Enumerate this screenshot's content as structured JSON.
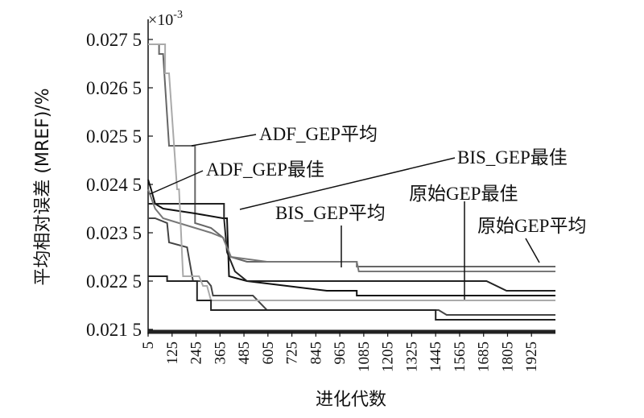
{
  "chart_data": {
    "type": "line",
    "xlabel": "进化代数",
    "ylabel": "平均相对误差 (MREF)/%",
    "y_exponent": "×10",
    "y_exponent_power": "-3",
    "xlim": [
      5,
      2045
    ],
    "ylim": [
      0.02145,
      0.02765
    ],
    "x_ticks": [
      "5",
      "125",
      "245",
      "365",
      "485",
      "605",
      "725",
      "845",
      "965",
      "1085",
      "1205",
      "1325",
      "1445",
      "1565",
      "1685",
      "1805",
      "1925"
    ],
    "x_tick_values": [
      5,
      125,
      245,
      365,
      485,
      605,
      725,
      845,
      965,
      1085,
      1205,
      1325,
      1445,
      1565,
      1685,
      1805,
      1925
    ],
    "y_ticks": [
      "0.021 5",
      "0.022 5",
      "0.023 5",
      "0.024 5",
      "0.025 5",
      "0.026 5",
      "0.027 5"
    ],
    "y_tick_values": [
      0.0215,
      0.0225,
      0.0235,
      0.0245,
      0.0255,
      0.0265,
      0.0275
    ],
    "series": [
      {
        "name": "ADF_GEP平均",
        "color": "#666666",
        "points": [
          [
            5,
            0.0274
          ],
          [
            60,
            0.0274
          ],
          [
            60,
            0.0272
          ],
          [
            80,
            0.0272
          ],
          [
            110,
            0.0253
          ],
          [
            240,
            0.0253
          ],
          [
            240,
            0.0237
          ],
          [
            320,
            0.0236
          ],
          [
            380,
            0.0234
          ],
          [
            420,
            0.023
          ],
          [
            500,
            0.0229
          ],
          [
            800,
            0.0229
          ],
          [
            1050,
            0.0229
          ],
          [
            1050,
            0.0228
          ],
          [
            1800,
            0.0228
          ],
          [
            1800,
            0.0228
          ],
          [
            2045,
            0.0228
          ]
        ]
      },
      {
        "name": "ADF_GEP最佳",
        "color": "#111111",
        "points": [
          [
            5,
            0.0246
          ],
          [
            20,
            0.0244
          ],
          [
            40,
            0.0241
          ],
          [
            80,
            0.024
          ],
          [
            240,
            0.0239
          ],
          [
            380,
            0.0238
          ],
          [
            400,
            0.0238
          ],
          [
            410,
            0.0226
          ],
          [
            500,
            0.0225
          ],
          [
            700,
            0.0224
          ],
          [
            900,
            0.0223
          ],
          [
            1050,
            0.0223
          ],
          [
            1050,
            0.0222
          ],
          [
            1800,
            0.0222
          ],
          [
            2045,
            0.0222
          ]
        ]
      },
      {
        "name": "BIS_GEP最佳",
        "color": "#222222",
        "points": [
          [
            5,
            0.0241
          ],
          [
            385,
            0.0241
          ],
          [
            385,
            0.0238
          ],
          [
            400,
            0.0231
          ],
          [
            440,
            0.0227
          ],
          [
            500,
            0.0225
          ],
          [
            1700,
            0.0225
          ],
          [
            1800,
            0.0223
          ],
          [
            2045,
            0.0223
          ]
        ]
      },
      {
        "name": "BIS_GEP平均",
        "color": "#777777",
        "points": [
          [
            5,
            0.0244
          ],
          [
            40,
            0.024
          ],
          [
            80,
            0.0238
          ],
          [
            160,
            0.0237
          ],
          [
            240,
            0.0236
          ],
          [
            320,
            0.0235
          ],
          [
            380,
            0.0234
          ],
          [
            420,
            0.023
          ],
          [
            600,
            0.0229
          ],
          [
            1050,
            0.0229
          ],
          [
            1060,
            0.0227
          ],
          [
            2045,
            0.0227
          ]
        ]
      },
      {
        "name": "原始GEP最佳",
        "color": "#444444",
        "points": [
          [
            5,
            0.0238
          ],
          [
            40,
            0.0238
          ],
          [
            100,
            0.0237
          ],
          [
            110,
            0.0233
          ],
          [
            200,
            0.0232
          ],
          [
            230,
            0.0225
          ],
          [
            300,
            0.0225
          ],
          [
            320,
            0.0224
          ],
          [
            330,
            0.0222
          ],
          [
            530,
            0.0222
          ],
          [
            600,
            0.0219
          ],
          [
            1460,
            0.0219
          ],
          [
            1500,
            0.0218
          ],
          [
            1800,
            0.0218
          ],
          [
            2045,
            0.0218
          ]
        ]
      },
      {
        "name": "原始GEP平均",
        "color": "#aaaaaa",
        "points": [
          [
            5,
            0.0274
          ],
          [
            90,
            0.0274
          ],
          [
            90,
            0.0268
          ],
          [
            110,
            0.0268
          ],
          [
            150,
            0.0244
          ],
          [
            160,
            0.0244
          ],
          [
            180,
            0.0226
          ],
          [
            260,
            0.0226
          ],
          [
            280,
            0.0224
          ],
          [
            300,
            0.0224
          ],
          [
            320,
            0.0221
          ],
          [
            2045,
            0.0221
          ]
        ]
      },
      {
        "name": "",
        "color": "#222222",
        "points": [
          [
            5,
            0.0226
          ],
          [
            100,
            0.0226
          ],
          [
            100,
            0.0225
          ],
          [
            250,
            0.0225
          ],
          [
            250,
            0.0221
          ],
          [
            320,
            0.0221
          ],
          [
            320,
            0.0219
          ],
          [
            400,
            0.0219
          ],
          [
            1445,
            0.0219
          ],
          [
            1445,
            0.0217
          ],
          [
            2045,
            0.0217
          ]
        ]
      }
    ],
    "annotations": [
      {
        "text": "ADF_GEP平均"
      },
      {
        "text": "ADF_GEP最佳"
      },
      {
        "text": "BIS_GEP最佳"
      },
      {
        "text": "原始GEP最佳"
      },
      {
        "text": "BIS_GEP平均"
      },
      {
        "text": "原始GEP平均"
      }
    ],
    "grid": false,
    "legend": "annotations"
  }
}
